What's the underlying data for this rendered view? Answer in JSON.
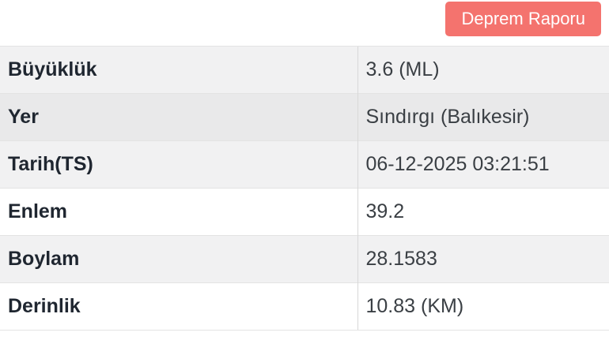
{
  "toolbar": {
    "report_button_label": "Deprem Raporu"
  },
  "colors": {
    "button_bg": "#f4736e",
    "button_text": "#ffffff",
    "stripe_row_bg": "#f1f1f2",
    "hover_row_bg": "#e9e9ea",
    "white_row_bg": "#ffffff",
    "label_text": "#1f2630",
    "value_text": "#3a3f44"
  },
  "table": {
    "rows": [
      {
        "key": "buyukluk",
        "label": "Büyüklük",
        "value": "3.6 (ML)"
      },
      {
        "key": "yer",
        "label": "Yer",
        "value": "Sındırgı (Balıkesir)"
      },
      {
        "key": "tarih",
        "label": "Tarih(TS)",
        "value": "06-12-2025 03:21:51"
      },
      {
        "key": "enlem",
        "label": "Enlem",
        "value": "39.2"
      },
      {
        "key": "boylam",
        "label": "Boylam",
        "value": "28.1583"
      },
      {
        "key": "derinlik",
        "label": "Derinlik",
        "value": "10.83 (KM)"
      }
    ],
    "row_backgrounds": [
      "stripe_row_bg",
      "hover_row_bg",
      "stripe_row_bg",
      "white_row_bg",
      "stripe_row_bg",
      "white_row_bg"
    ]
  }
}
